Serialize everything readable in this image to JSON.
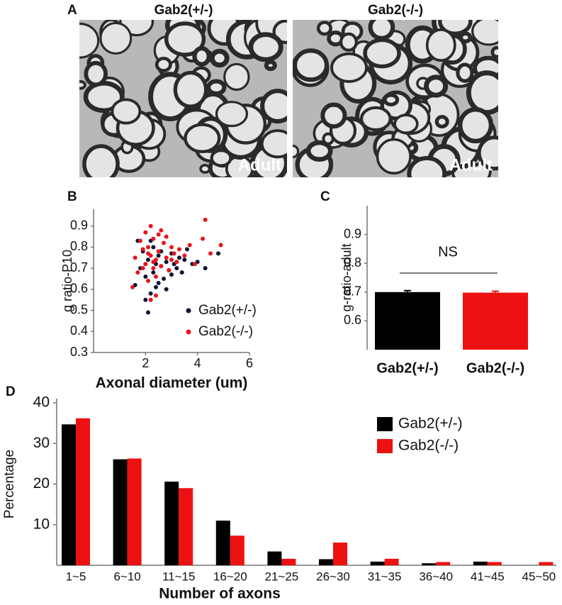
{
  "panel_labels": [
    "A",
    "B",
    "C",
    "D"
  ],
  "micrographs": [
    {
      "title": "Gab2(+/-)",
      "label": "Adult"
    },
    {
      "title": "Gab2(-/-)",
      "label": "Adult"
    }
  ],
  "chart_data": [
    {
      "type": "scatter",
      "xlabel": "Axonal diameter (um)",
      "ylabel": "g ratio-P10",
      "xlim": [
        0,
        6
      ],
      "ylim": [
        0.3,
        0.98
      ],
      "xticks": [
        2,
        4,
        6
      ],
      "yticks": [
        0.3,
        0.4,
        0.5,
        0.6,
        0.7,
        0.8,
        0.9
      ],
      "legend": "lower right",
      "series": [
        {
          "name": "Gab2(+/-)",
          "color": "#0d1533",
          "x": [
            1.6,
            1.8,
            1.9,
            2.0,
            2.1,
            2.1,
            2.2,
            2.3,
            2.3,
            2.4,
            2.5,
            2.5,
            2.6,
            2.7,
            2.8,
            2.9,
            3.0,
            3.1,
            3.2,
            3.3,
            3.4,
            3.5,
            3.6,
            3.8,
            4.0,
            4.3,
            4.8,
            1.7,
            2.0,
            2.2,
            2.4,
            2.6,
            2.0,
            2.8,
            3.0
          ],
          "y": [
            0.62,
            0.7,
            0.78,
            0.66,
            0.49,
            0.74,
            0.58,
            0.8,
            0.68,
            0.72,
            0.63,
            0.76,
            0.71,
            0.65,
            0.73,
            0.69,
            0.77,
            0.72,
            0.7,
            0.75,
            0.68,
            0.74,
            0.79,
            0.72,
            0.73,
            0.7,
            0.77,
            0.83,
            0.55,
            0.83,
            0.61,
            0.78,
            0.72,
            0.6,
            0.67
          ]
        },
        {
          "name": "Gab2(-/-)",
          "color": "#e8141c",
          "x": [
            1.5,
            1.6,
            1.7,
            1.8,
            1.9,
            2.0,
            2.0,
            2.1,
            2.1,
            2.2,
            2.2,
            2.3,
            2.3,
            2.4,
            2.4,
            2.5,
            2.5,
            2.6,
            2.7,
            2.8,
            2.9,
            3.0,
            3.1,
            3.2,
            3.3,
            3.5,
            3.7,
            3.9,
            4.2,
            4.5,
            4.9,
            2.2,
            2.6,
            1.9,
            2.4,
            3.0,
            2.8,
            2.1,
            2.3,
            4.3
          ],
          "y": [
            0.61,
            0.75,
            0.68,
            0.83,
            0.79,
            0.72,
            0.87,
            0.64,
            0.8,
            0.76,
            0.9,
            0.7,
            0.84,
            0.74,
            0.57,
            0.78,
            0.86,
            0.71,
            0.82,
            0.75,
            0.69,
            0.8,
            0.77,
            0.73,
            0.79,
            0.76,
            0.81,
            0.72,
            0.84,
            0.77,
            0.81,
            0.55,
            0.88,
            0.7,
            0.66,
            0.74,
            0.85,
            0.77,
            0.73,
            0.93
          ]
        }
      ]
    },
    {
      "type": "bar",
      "ylabel": "g-ratio-adult",
      "categories": [
        "Gab2(+/-)",
        "Gab2(-/-)"
      ],
      "values": [
        0.7,
        0.698
      ],
      "errors": [
        0.005,
        0.005
      ],
      "colors": [
        "#000000",
        "#ee1111"
      ],
      "ylim": [
        0.5,
        1.0
      ],
      "yticks": [
        0.6,
        0.7,
        0.8,
        0.9
      ],
      "annotation": "NS"
    },
    {
      "type": "grouped_bar",
      "xlabel": "Number of axons",
      "ylabel": "Percentage",
      "categories": [
        "1~5",
        "6~10",
        "11~15",
        "16~20",
        "21~25",
        "26~30",
        "31~35",
        "36~40",
        "41~45",
        "45~50"
      ],
      "series": [
        {
          "name": "Gab2(+/-)",
          "color": "#000000",
          "values": [
            34.7,
            26.1,
            20.6,
            11.0,
            3.4,
            1.5,
            0.9,
            0.5,
            0.9,
            0
          ]
        },
        {
          "name": "Gab2(-/-)",
          "color": "#ee1111",
          "values": [
            36.2,
            26.3,
            19.0,
            7.3,
            1.6,
            5.6,
            1.6,
            0.8,
            0.8,
            0.8
          ]
        }
      ],
      "ylim": [
        0,
        40
      ],
      "yticks": [
        10,
        20,
        30,
        40
      ],
      "legend": "upper right"
    }
  ]
}
